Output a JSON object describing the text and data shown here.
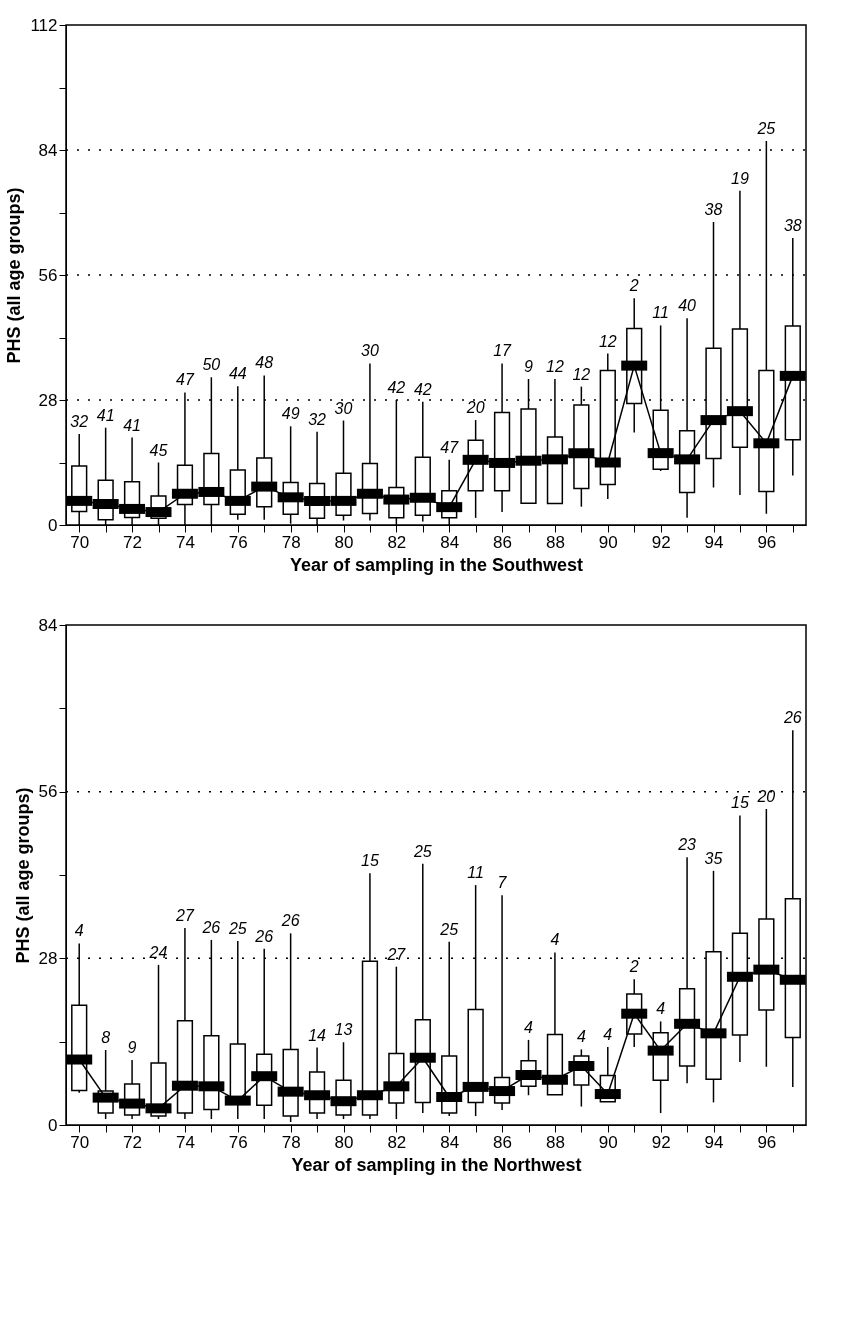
{
  "chart_data": [
    {
      "type": "box",
      "xlabel": "Year of sampling in the Southwest",
      "ylabel": "PHS (all age groups)",
      "x": [
        70,
        71,
        72,
        73,
        74,
        75,
        76,
        77,
        78,
        79,
        80,
        81,
        82,
        83,
        84,
        85,
        86,
        87,
        88,
        89,
        90,
        91,
        92,
        93,
        94,
        95,
        96,
        97
      ],
      "boxes": [
        {
          "low": 0,
          "q1": 3.0,
          "median": 5.4,
          "q3": 13.2,
          "high": 20.4
        },
        {
          "low": 0,
          "q1": 1.2,
          "median": 4.7,
          "q3": 10.0,
          "high": 21.8
        },
        {
          "low": 0,
          "q1": 1.7,
          "median": 3.6,
          "q3": 9.7,
          "high": 19.6
        },
        {
          "low": 0,
          "q1": 1.5,
          "median": 2.9,
          "q3": 6.5,
          "high": 14.0
        },
        {
          "low": 0,
          "q1": 4.6,
          "median": 7.0,
          "q3": 13.4,
          "high": 29.7
        },
        {
          "low": 0,
          "q1": 4.6,
          "median": 7.4,
          "q3": 16.0,
          "high": 33.1
        },
        {
          "low": 1.2,
          "q1": 2.4,
          "median": 5.4,
          "q3": 12.3,
          "high": 31.1
        },
        {
          "low": 1.2,
          "q1": 4.1,
          "median": 8.6,
          "q3": 15.0,
          "high": 33.5
        },
        {
          "low": 0.3,
          "q1": 2.4,
          "median": 6.2,
          "q3": 9.5,
          "high": 22.1
        },
        {
          "low": 0,
          "q1": 1.5,
          "median": 5.4,
          "q3": 9.3,
          "high": 20.9
        },
        {
          "low": 1.0,
          "q1": 2.2,
          "median": 5.4,
          "q3": 11.6,
          "high": 23.4
        },
        {
          "low": 1.0,
          "q1": 2.6,
          "median": 7.0,
          "q3": 13.8,
          "high": 36.2
        },
        {
          "low": 0,
          "q1": 1.6,
          "median": 5.7,
          "q3": 8.4,
          "high": 28.0
        },
        {
          "low": 0.8,
          "q1": 2.2,
          "median": 6.1,
          "q3": 15.2,
          "high": 27.6
        },
        {
          "low": 0,
          "q1": 1.6,
          "median": 4.0,
          "q3": 7.7,
          "high": 14.6
        },
        {
          "low": 1.6,
          "q1": 7.7,
          "median": 14.6,
          "q3": 19.0,
          "high": 23.5
        },
        {
          "low": 2.9,
          "q1": 7.7,
          "median": 13.9,
          "q3": 25.2,
          "high": 36.2
        },
        {
          "low": 4.9,
          "q1": 4.9,
          "median": 14.4,
          "q3": 26.0,
          "high": 32.7
        },
        {
          "low": 4.8,
          "q1": 4.8,
          "median": 14.7,
          "q3": 19.7,
          "high": 32.7
        },
        {
          "low": 4.1,
          "q1": 8.2,
          "median": 16.1,
          "q3": 26.9,
          "high": 31.0
        },
        {
          "low": 5.8,
          "q1": 9.1,
          "median": 14.0,
          "q3": 34.6,
          "high": 38.4
        },
        {
          "low": 20.7,
          "q1": 27.2,
          "median": 35.7,
          "q3": 44.0,
          "high": 50.8
        },
        {
          "low": 12.1,
          "q1": 12.5,
          "median": 16.1,
          "q3": 25.7,
          "high": 44.7
        },
        {
          "low": 1.6,
          "q1": 7.3,
          "median": 14.7,
          "q3": 21.1,
          "high": 46.3
        },
        {
          "low": 8.4,
          "q1": 14.9,
          "median": 23.5,
          "q3": 39.6,
          "high": 67.9
        },
        {
          "low": 6.7,
          "q1": 17.4,
          "median": 25.5,
          "q3": 43.9,
          "high": 74.9
        },
        {
          "low": 2.5,
          "q1": 7.5,
          "median": 18.3,
          "q3": 34.6,
          "high": 86.0
        },
        {
          "low": 11.1,
          "q1": 19.1,
          "median": 33.4,
          "q3": 44.6,
          "high": 64.3
        }
      ],
      "series": [
        {
          "type": "line",
          "color": "#000000",
          "x": [
            70,
            71,
            72,
            73,
            74,
            75,
            76,
            77,
            78,
            79,
            80,
            81,
            82,
            83,
            84,
            85,
            86,
            87,
            88,
            89,
            90,
            91,
            92,
            93,
            94,
            95,
            96,
            97
          ],
          "values": [
            5.4,
            4.7,
            3.6,
            2.9,
            7.0,
            7.4,
            5.4,
            8.6,
            6.2,
            5.4,
            5.4,
            7.0,
            5.7,
            6.1,
            4.0,
            14.6,
            13.9,
            14.4,
            14.7,
            16.1,
            14.0,
            35.7,
            16.1,
            14.7,
            23.5,
            25.5,
            18.3,
            33.4
          ]
        }
      ],
      "annotations": [
        {
          "text": "32",
          "x": 70,
          "y": 20.4
        },
        {
          "text": "41",
          "x": 71,
          "y": 21.8
        },
        {
          "text": "41",
          "x": 72,
          "y": 19.6
        },
        {
          "text": "45",
          "x": 73,
          "y": 14.0
        },
        {
          "text": "47",
          "x": 74,
          "y": 29.7
        },
        {
          "text": "50",
          "x": 75,
          "y": 33.1
        },
        {
          "text": "44",
          "x": 76,
          "y": 31.1
        },
        {
          "text": "48",
          "x": 77,
          "y": 33.5
        },
        {
          "text": "49",
          "x": 78,
          "y": 22.1
        },
        {
          "text": "32",
          "x": 79,
          "y": 20.9
        },
        {
          "text": "30",
          "x": 80,
          "y": 23.4
        },
        {
          "text": "30",
          "x": 81,
          "y": 36.2
        },
        {
          "text": "42",
          "x": 82,
          "y": 28.0
        },
        {
          "text": "42",
          "x": 83,
          "y": 27.6
        },
        {
          "text": "47",
          "x": 84,
          "y": 14.6
        },
        {
          "text": "20",
          "x": 85,
          "y": 23.5
        },
        {
          "text": "17",
          "x": 86,
          "y": 36.2
        },
        {
          "text": "9",
          "x": 87,
          "y": 32.7
        },
        {
          "text": "12",
          "x": 88,
          "y": 32.7
        },
        {
          "text": "12",
          "x": 89,
          "y": 31.0
        },
        {
          "text": "12",
          "x": 90,
          "y": 38.4
        },
        {
          "text": "2",
          "x": 91,
          "y": 50.8
        },
        {
          "text": "11",
          "x": 92,
          "y": 44.7
        },
        {
          "text": "40",
          "x": 93,
          "y": 46.3
        },
        {
          "text": "38",
          "x": 94,
          "y": 67.9
        },
        {
          "text": "19",
          "x": 95,
          "y": 74.9
        },
        {
          "text": "25",
          "x": 96,
          "y": 86.0
        },
        {
          "text": "38",
          "x": 97,
          "y": 64.3
        }
      ],
      "xlim": [
        69.5,
        97.5
      ],
      "ylim": [
        0,
        112
      ],
      "xticks": [
        70,
        {
          "value": 71,
          "label": null
        },
        72,
        {
          "value": 73,
          "label": null
        },
        74,
        {
          "value": 75,
          "label": null
        },
        76,
        {
          "value": 77,
          "label": null
        },
        78,
        {
          "value": 79,
          "label": null
        },
        80,
        {
          "value": 81,
          "label": null
        },
        82,
        {
          "value": 83,
          "label": null
        },
        84,
        {
          "value": 85,
          "label": null
        },
        86,
        {
          "value": 87,
          "label": null
        },
        88,
        {
          "value": 89,
          "label": null
        },
        90,
        {
          "value": 91,
          "label": null
        },
        92,
        {
          "value": 93,
          "label": null
        },
        94,
        {
          "value": 95,
          "label": null
        },
        96,
        {
          "value": 97,
          "label": null
        }
      ],
      "yticks": [
        0,
        {
          "value": 14,
          "label": null
        },
        28,
        {
          "value": 42,
          "label": null
        },
        56,
        {
          "value": 70,
          "label": null
        },
        84,
        {
          "value": 98,
          "label": null
        },
        112
      ],
      "grid": "y"
    },
    {
      "type": "box",
      "xlabel": "Year of sampling in the Northwest",
      "ylabel": "PHS (all age groups)",
      "x": [
        70,
        71,
        72,
        73,
        74,
        75,
        76,
        77,
        78,
        79,
        80,
        81,
        82,
        83,
        84,
        85,
        86,
        87,
        88,
        89,
        90,
        91,
        92,
        93,
        94,
        95,
        96,
        97
      ],
      "boxes": [
        {
          "low": 5.4,
          "q1": 5.8,
          "median": 11.0,
          "q3": 20.1,
          "high": 30.5
        },
        {
          "low": 1.0,
          "q1": 2.0,
          "median": 4.6,
          "q3": 5.7,
          "high": 12.6
        },
        {
          "low": 1.0,
          "q1": 1.7,
          "median": 3.6,
          "q3": 6.9,
          "high": 10.9
        },
        {
          "low": 1.0,
          "q1": 1.5,
          "median": 2.8,
          "q3": 10.4,
          "high": 26.9
        },
        {
          "low": 1.0,
          "q1": 2.0,
          "median": 6.6,
          "q3": 17.5,
          "high": 33.1
        },
        {
          "low": 1.0,
          "q1": 2.6,
          "median": 6.5,
          "q3": 15.0,
          "high": 31.1
        },
        {
          "low": 1.0,
          "q1": 3.5,
          "median": 4.1,
          "q3": 13.6,
          "high": 30.9
        },
        {
          "low": 1.0,
          "q1": 3.3,
          "median": 8.2,
          "q3": 11.9,
          "high": 29.6
        },
        {
          "low": 0.5,
          "q1": 1.5,
          "median": 5.6,
          "q3": 12.7,
          "high": 32.2
        },
        {
          "low": 1.0,
          "q1": 2.0,
          "median": 5.0,
          "q3": 8.9,
          "high": 13.0
        },
        {
          "low": 1.0,
          "q1": 1.7,
          "median": 4.0,
          "q3": 7.5,
          "high": 13.9
        },
        {
          "low": 1.0,
          "q1": 1.7,
          "median": 5.0,
          "q3": 27.5,
          "high": 42.3
        },
        {
          "low": 1.0,
          "q1": 3.7,
          "median": 6.5,
          "q3": 12.0,
          "high": 26.6
        },
        {
          "low": 2.0,
          "q1": 3.8,
          "median": 11.3,
          "q3": 17.7,
          "high": 43.9
        },
        {
          "low": 1.5,
          "q1": 2.0,
          "median": 4.7,
          "q3": 11.6,
          "high": 30.8
        },
        {
          "low": 1.5,
          "q1": 3.8,
          "median": 6.4,
          "q3": 19.4,
          "high": 40.3
        },
        {
          "low": 2.5,
          "q1": 3.7,
          "median": 5.7,
          "q3": 8.0,
          "high": 38.6
        },
        {
          "low": 5.0,
          "q1": 6.5,
          "median": 8.4,
          "q3": 10.8,
          "high": 14.3
        },
        {
          "low": 5.1,
          "q1": 5.1,
          "median": 7.6,
          "q3": 15.2,
          "high": 29.0
        },
        {
          "low": 3.1,
          "q1": 6.7,
          "median": 9.9,
          "q3": 11.6,
          "high": 12.7
        },
        {
          "low": 3.9,
          "q1": 3.9,
          "median": 5.2,
          "q3": 8.3,
          "high": 13.1
        },
        {
          "low": 13.1,
          "q1": 15.3,
          "median": 18.7,
          "q3": 22.0,
          "high": 24.5
        },
        {
          "low": 2.0,
          "q1": 7.5,
          "median": 12.5,
          "q3": 15.5,
          "high": 17.4
        },
        {
          "low": 7.0,
          "q1": 9.9,
          "median": 17.0,
          "q3": 22.9,
          "high": 45.0
        },
        {
          "low": 3.8,
          "q1": 7.7,
          "median": 15.4,
          "q3": 29.1,
          "high": 42.7
        },
        {
          "low": 10.6,
          "q1": 15.1,
          "median": 24.9,
          "q3": 32.2,
          "high": 52.0
        },
        {
          "low": 9.8,
          "q1": 19.3,
          "median": 26.1,
          "q3": 34.6,
          "high": 53.1
        },
        {
          "low": 6.4,
          "q1": 14.7,
          "median": 24.4,
          "q3": 38.0,
          "high": 66.3
        }
      ],
      "series": [
        {
          "type": "line",
          "color": "#000000",
          "x": [
            70,
            71,
            72,
            73,
            74,
            75,
            76,
            77,
            78,
            79,
            80,
            81,
            82,
            83,
            84,
            85,
            86,
            87,
            88,
            89,
            90,
            91,
            92,
            93,
            94,
            95,
            96,
            97
          ],
          "values": [
            11.0,
            4.6,
            3.6,
            2.8,
            6.6,
            6.5,
            4.1,
            8.2,
            5.6,
            5.0,
            4.0,
            5.0,
            6.5,
            11.3,
            4.7,
            6.4,
            5.7,
            8.4,
            7.6,
            9.9,
            5.2,
            18.7,
            12.5,
            17.0,
            15.4,
            24.9,
            26.1,
            24.4
          ]
        }
      ],
      "annotations": [
        {
          "text": "4",
          "x": 70,
          "y": 30.5
        },
        {
          "text": "8",
          "x": 71,
          "y": 12.6
        },
        {
          "text": "9",
          "x": 72,
          "y": 10.9
        },
        {
          "text": "24",
          "x": 73,
          "y": 26.9
        },
        {
          "text": "27",
          "x": 74,
          "y": 33.1
        },
        {
          "text": "26",
          "x": 75,
          "y": 31.1
        },
        {
          "text": "25",
          "x": 76,
          "y": 30.9
        },
        {
          "text": "26",
          "x": 77,
          "y": 29.6
        },
        {
          "text": "26",
          "x": 78,
          "y": 32.2
        },
        {
          "text": "14",
          "x": 79,
          "y": 13.0
        },
        {
          "text": "13",
          "x": 80,
          "y": 13.9
        },
        {
          "text": "15",
          "x": 81,
          "y": 42.3
        },
        {
          "text": "27",
          "x": 82,
          "y": 26.6
        },
        {
          "text": "25",
          "x": 83,
          "y": 43.9
        },
        {
          "text": "25",
          "x": 84,
          "y": 30.8
        },
        {
          "text": "11",
          "x": 85,
          "y": 40.3
        },
        {
          "text": "7",
          "x": 86,
          "y": 38.6
        },
        {
          "text": "4",
          "x": 87,
          "y": 14.3
        },
        {
          "text": "4",
          "x": 88,
          "y": 29.0
        },
        {
          "text": "4",
          "x": 89,
          "y": 12.7
        },
        {
          "text": "4",
          "x": 90,
          "y": 13.1
        },
        {
          "text": "2",
          "x": 91,
          "y": 24.5
        },
        {
          "text": "4",
          "x": 92,
          "y": 17.4
        },
        {
          "text": "23",
          "x": 93,
          "y": 45.0
        },
        {
          "text": "35",
          "x": 94,
          "y": 42.7
        },
        {
          "text": "15",
          "x": 95,
          "y": 52.0
        },
        {
          "text": "20",
          "x": 96,
          "y": 53.1
        },
        {
          "text": "26",
          "x": 97,
          "y": 66.3
        }
      ],
      "xlim": [
        69.5,
        97.5
      ],
      "ylim": [
        0,
        84
      ],
      "xticks": [
        70,
        {
          "value": 71,
          "label": null
        },
        72,
        {
          "value": 73,
          "label": null
        },
        74,
        {
          "value": 75,
          "label": null
        },
        76,
        {
          "value": 77,
          "label": null
        },
        78,
        {
          "value": 79,
          "label": null
        },
        80,
        {
          "value": 81,
          "label": null
        },
        82,
        {
          "value": 83,
          "label": null
        },
        84,
        {
          "value": 85,
          "label": null
        },
        86,
        {
          "value": 87,
          "label": null
        },
        88,
        {
          "value": 89,
          "label": null
        },
        90,
        {
          "value": 91,
          "label": null
        },
        92,
        {
          "value": 93,
          "label": null
        },
        94,
        {
          "value": 95,
          "label": null
        },
        96,
        {
          "value": 97,
          "label": null
        }
      ],
      "yticks": [
        0,
        {
          "value": 14,
          "label": null
        },
        28,
        {
          "value": 42,
          "label": null
        },
        56,
        {
          "value": 70,
          "label": null
        },
        84
      ],
      "grid": "y"
    }
  ]
}
